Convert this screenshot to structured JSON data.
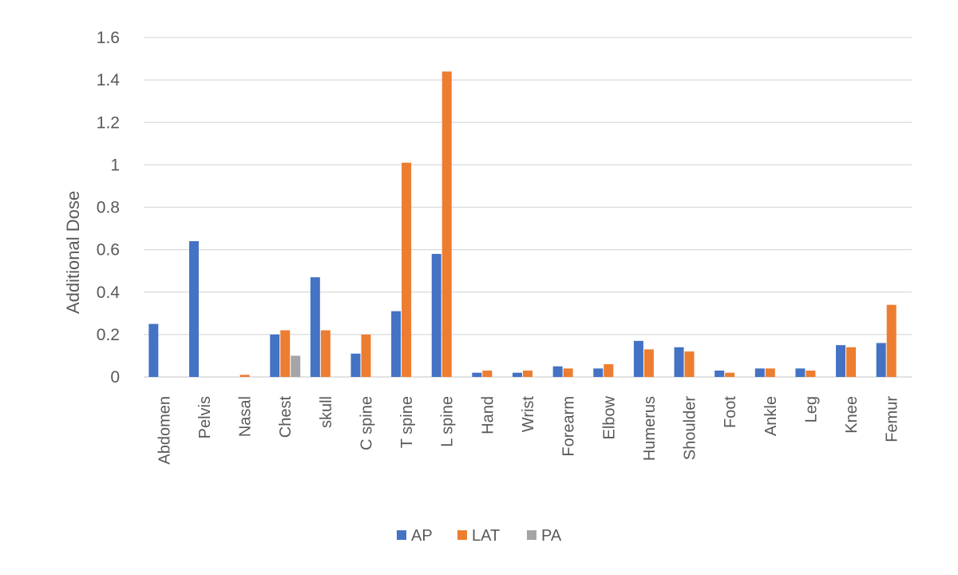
{
  "chart_data": {
    "type": "bar",
    "title": "",
    "xlabel": "",
    "ylabel": "Additional Dose",
    "ylim": [
      0,
      1.6
    ],
    "yticks": [
      0,
      0.2,
      0.4,
      0.6,
      0.8,
      1,
      1.2,
      1.4,
      1.6
    ],
    "ytick_labels": [
      "0",
      "0.2",
      "0.4",
      "0.6",
      "0.8",
      "1",
      "1.2",
      "1.4",
      "1.6"
    ],
    "grid": true,
    "legend_position": "bottom",
    "categories": [
      "Abdomen",
      "Pelvis",
      "Nasal",
      "Chest",
      "skull",
      "C spine",
      "T spine",
      "L spine",
      "Hand",
      "Wrist",
      "Forearm",
      "Elbow",
      "Humerus",
      "Shoulder",
      "Foot",
      "Ankle",
      "Leg",
      "Knee",
      "Femur"
    ],
    "series": [
      {
        "name": "AP",
        "color": "#4472C4",
        "values": [
          0.25,
          0.64,
          null,
          0.2,
          0.47,
          0.11,
          0.31,
          0.58,
          0.02,
          0.02,
          0.05,
          0.04,
          0.17,
          0.14,
          0.03,
          0.04,
          0.04,
          0.15,
          0.16
        ]
      },
      {
        "name": "LAT",
        "color": "#ED7D31",
        "values": [
          null,
          null,
          0.01,
          0.22,
          0.22,
          0.2,
          1.01,
          1.44,
          0.03,
          0.03,
          0.04,
          0.06,
          0.13,
          0.12,
          0.02,
          0.04,
          0.03,
          0.14,
          0.34
        ]
      },
      {
        "name": "PA",
        "color": "#A5A5A5",
        "values": [
          null,
          null,
          null,
          0.1,
          null,
          null,
          null,
          null,
          null,
          null,
          null,
          null,
          null,
          null,
          null,
          null,
          null,
          null,
          null
        ]
      }
    ]
  }
}
